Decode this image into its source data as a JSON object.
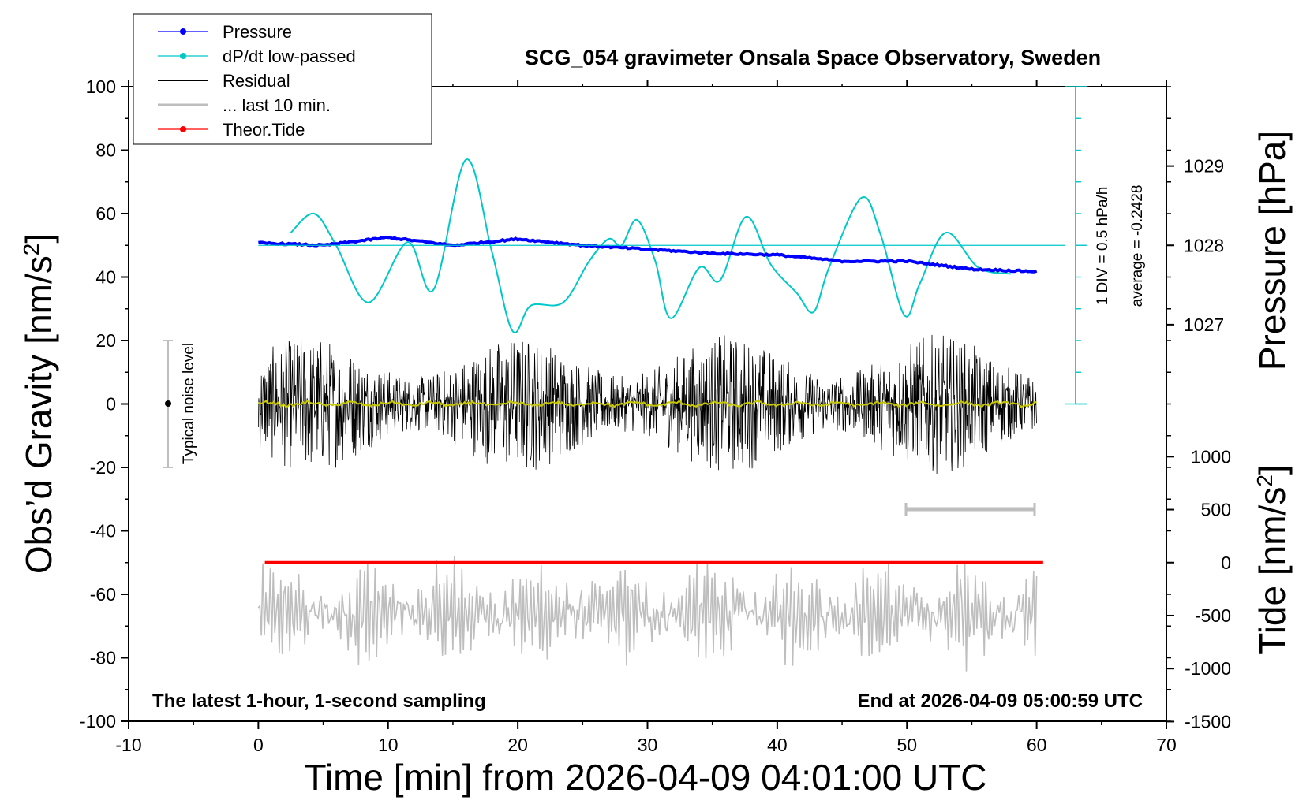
{
  "chart_data": {
    "type": "line",
    "title": "SCG_054 gravimeter Onsala Space Observatory, Sweden",
    "xlabel": "Time [min] from 2026-04-09 04:01:00 UTC",
    "ylabel_left": "Obs'd Gravity [nm/s²]",
    "ylabel_right_top": "Pressure [hPa]",
    "ylabel_right_bottom": "Tide [nm/s²]",
    "xlim": [
      -10,
      70
    ],
    "ylim_left": [
      -100,
      100
    ],
    "pressure_axis": {
      "ticks": [
        1027,
        1028,
        1029
      ]
    },
    "tide_axis": {
      "ticks": [
        1000,
        500,
        0,
        -500,
        -1000,
        -1500
      ]
    },
    "x_ticks": [
      -10,
      0,
      10,
      20,
      30,
      40,
      50,
      60,
      70
    ],
    "y_ticks": [
      100,
      80,
      60,
      40,
      20,
      0,
      -20,
      -40,
      -60,
      -80,
      -100
    ],
    "grid": false,
    "legend": {
      "placement": "top-left",
      "entries": [
        {
          "label": "Pressure",
          "color": "#0000ff",
          "marker": true
        },
        {
          "label": "dP/dt low-passed",
          "color": "#00c8c8",
          "marker": true
        },
        {
          "label": "Residual",
          "color": "#000000",
          "marker": false
        },
        {
          "label": "... last 10 min.",
          "color": "#bebebe",
          "marker": false
        },
        {
          "label": "Theor.Tide",
          "color": "#ff0000",
          "marker": true
        }
      ]
    },
    "annotations": {
      "noise_label": "Typical noise level",
      "div_label": "1 DIV = 0.5 hPa/h",
      "average_label": "average = -0.2428",
      "footer_left": "The latest 1-hour, 1-second sampling",
      "footer_right": "End at 2026-04-09 05:00:59 UTC"
    },
    "series": [
      {
        "name": "Pressure",
        "color": "#0000ff",
        "x": [
          0,
          5,
          10,
          15,
          20,
          25,
          30,
          35,
          40,
          45,
          50,
          55,
          60
        ],
        "y": [
          1028.03,
          1028.0,
          1028.1,
          1028.0,
          1028.08,
          1028.0,
          1027.95,
          1027.9,
          1027.88,
          1027.8,
          1027.8,
          1027.7,
          1027.67
        ]
      },
      {
        "name": "dP/dt low-passed",
        "color": "#00c8c8",
        "x": [
          2.5,
          4.3,
          6,
          8.5,
          11.5,
          13.5,
          16,
          18,
          19.6,
          21,
          23.5,
          25.5,
          27,
          28,
          29.2,
          30.6,
          31.8,
          34,
          35.6,
          37.6,
          39.5,
          41.5,
          42.8,
          44,
          46.5,
          48,
          49.8,
          51,
          53,
          55.5,
          58
        ],
        "y": [
          54,
          60,
          50,
          32,
          51,
          36,
          77,
          48,
          23,
          31,
          32,
          45,
          52,
          50,
          58,
          45,
          27,
          43,
          39,
          59,
          44,
          35,
          29,
          43,
          65,
          53,
          28,
          38,
          54,
          43,
          41
        ]
      },
      {
        "name": "Residual",
        "color": "#000000",
        "x_range": [
          0,
          60
        ],
        "envelope": 22
      },
      {
        "name": "Residual smoothed",
        "color": "#c8c800",
        "x": [
          0,
          10,
          20,
          30,
          40,
          50,
          60
        ],
        "y": [
          0.5,
          0,
          0.5,
          0,
          -0.5,
          0.5,
          0
        ]
      },
      {
        "name": "... last 10 min.",
        "color": "#bebebe",
        "x_range": [
          0,
          60
        ],
        "center": -66,
        "amplitude": 14
      },
      {
        "name": "Theor.Tide",
        "color": "#ff0000",
        "x": [
          0.5,
          60.5
        ],
        "y": [
          -50,
          -50
        ]
      }
    ]
  }
}
